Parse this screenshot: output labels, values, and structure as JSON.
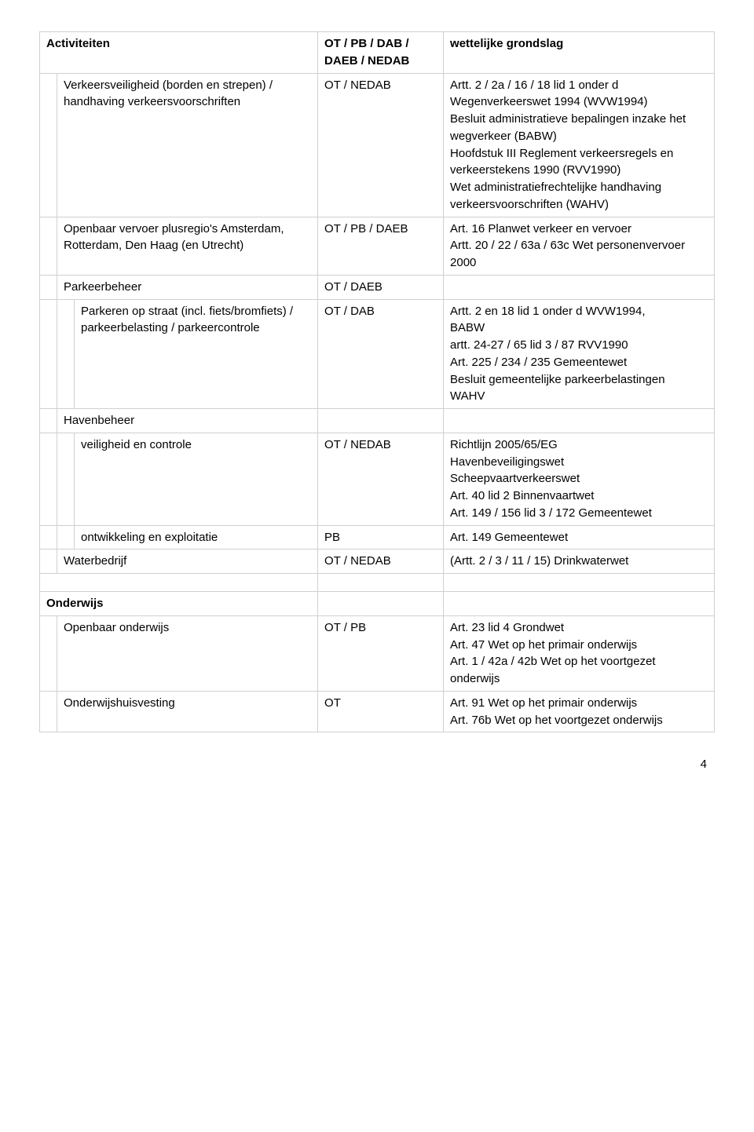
{
  "header": {
    "col_activiteiten": "Activiteiten",
    "col_codes": "OT / PB / DAB / DAEB / NEDAB",
    "col_grondslag": "wettelijke grondslag"
  },
  "rows": {
    "verkeersveiligheid": {
      "label": "Verkeersveiligheid (borden en strepen) / handhaving verkeersvoorschriften",
      "code": "OT / NEDAB",
      "wet": "Artt. 2 / 2a / 16 / 18 lid 1 onder d Wegenverkeerswet 1994 (WVW1994)\nBesluit administratieve bepalingen inzake het wegverkeer (BABW)\nHoofdstuk III Reglement verkeersregels en verkeerstekens 1990 (RVV1990)\nWet administratiefrechtelijke handhaving verkeersvoorschriften (WAHV)"
    },
    "ov": {
      "label": "Openbaar vervoer plusregio's Amsterdam, Rotterdam, Den Haag (en Utrecht)",
      "code": "OT / PB / DAEB",
      "wet": "Art. 16 Planwet verkeer en vervoer\nArtt. 20 / 22 / 63a / 63c Wet personenvervoer 2000"
    },
    "parkeerbeheer": {
      "label": "Parkeerbeheer",
      "code": "OT / DAEB"
    },
    "parkeren_straat": {
      "label": "Parkeren op straat (incl. fiets/bromfiets) / parkeerbelasting / parkeercontrole",
      "code": "OT / DAB",
      "wet": "Artt. 2 en 18 lid 1 onder d WVW1994,\nBABW\nartt. 24-27 / 65 lid 3 / 87 RVV1990\nArt. 225 / 234 / 235 Gemeentewet\nBesluit gemeentelijke parkeerbelastingen\nWAHV"
    },
    "havenbeheer": {
      "label": "Havenbeheer"
    },
    "veiligheid": {
      "label": "veiligheid en controle",
      "code": "OT / NEDAB",
      "wet": "Richtlijn 2005/65/EG\nHavenbeveiligingswet\nScheepvaartverkeerswet\nArt. 40 lid 2 Binnenvaartwet\nArt. 149 / 156 lid 3 / 172 Gemeentewet"
    },
    "ontwikkeling": {
      "label": "ontwikkeling en exploitatie",
      "code": "PB",
      "wet": "Art. 149 Gemeentewet"
    },
    "waterbedrijf": {
      "label": "Waterbedrijf",
      "code": "OT / NEDAB",
      "wet": "(Artt. 2 / 3 / 11 / 15) Drinkwaterwet"
    },
    "onderwijs_header": {
      "label": "Onderwijs"
    },
    "openbaar_onderwijs": {
      "label": "Openbaar onderwijs",
      "code": "OT / PB",
      "wet": "Art. 23 lid 4 Grondwet\nArt. 47 Wet op het primair onderwijs\nArt. 1 / 42a / 42b  Wet op het voortgezet onderwijs"
    },
    "onderwijshuisvesting": {
      "label": "Onderwijshuisvesting",
      "code": "OT",
      "wet": "Art. 91 Wet op het primair onderwijs\nArt. 76b Wet op het voortgezet onderwijs"
    }
  },
  "page_number": "4"
}
